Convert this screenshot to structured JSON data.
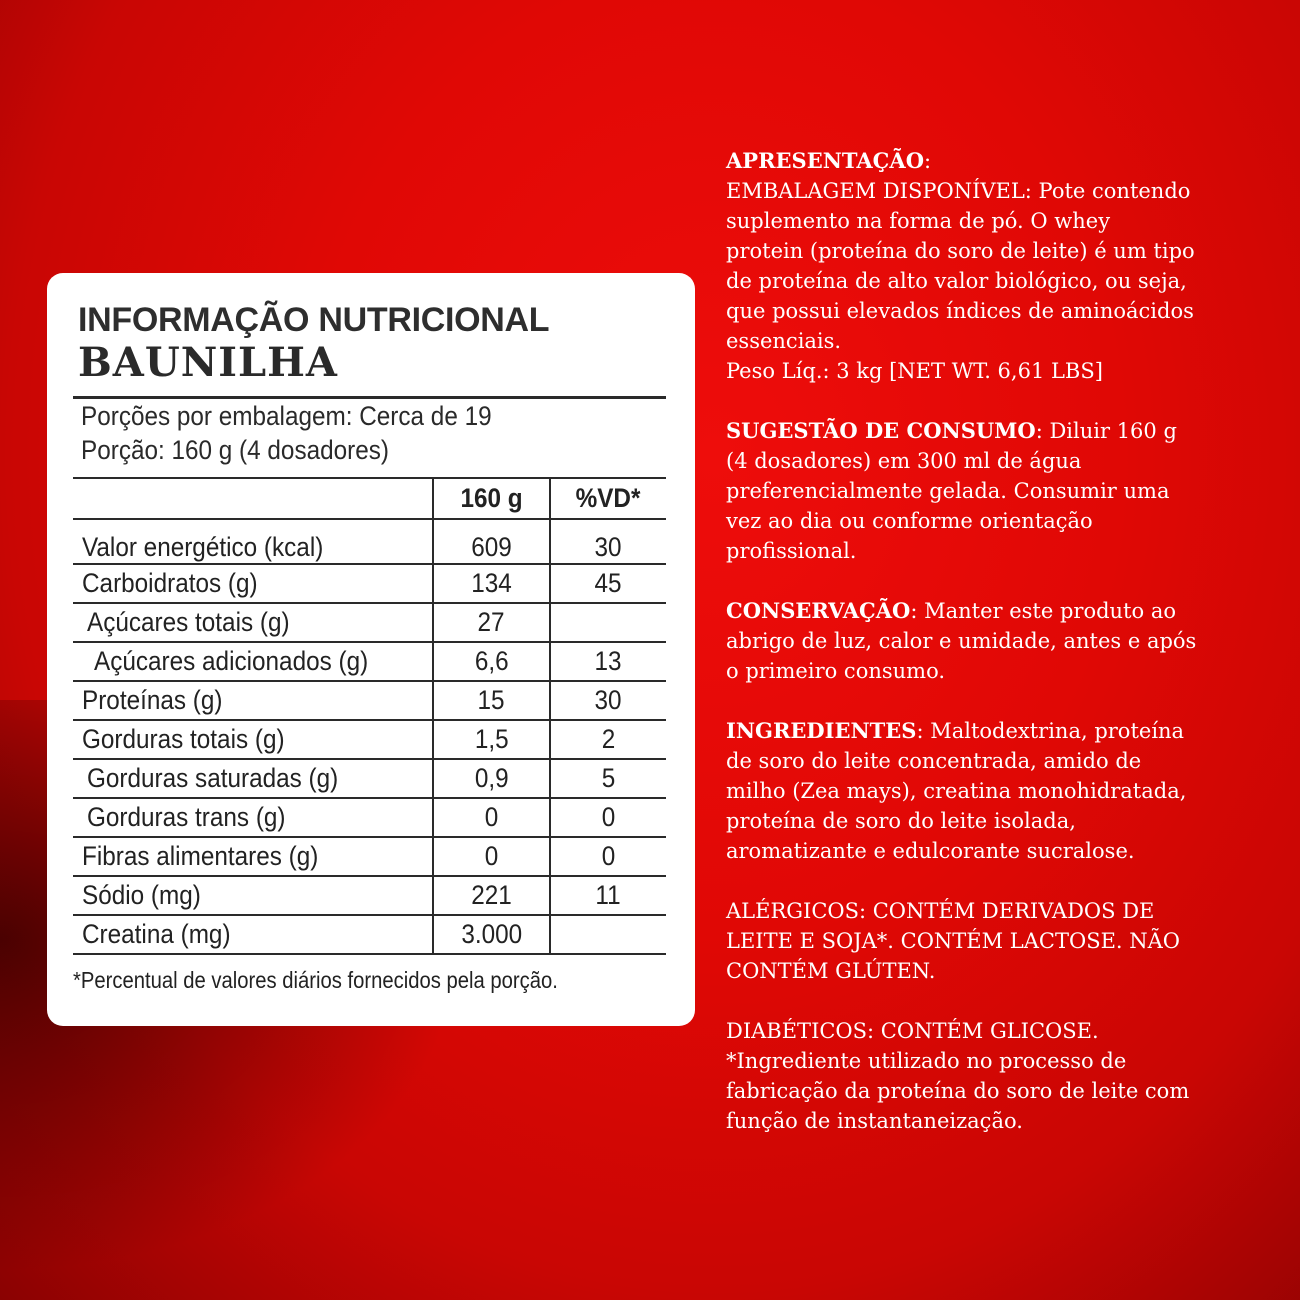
{
  "panel": {
    "title": "INFORMAÇÃO NUTRICIONAL",
    "flavor": "BAUNILHA",
    "servings_per_pack": "Porções por embalagem: Cerca de 19",
    "serving_size": "Porção: 160 g (4 dosadores)",
    "columns": [
      "",
      "160 g",
      "%VD*"
    ],
    "rows": [
      {
        "label": "Valor energético (kcal)",
        "amount": "609",
        "dv": "30",
        "indent": 0
      },
      {
        "label": "Carboidratos (g)",
        "amount": "134",
        "dv": "45",
        "indent": 0
      },
      {
        "label": "Açúcares totais (g)",
        "amount": "27",
        "dv": "",
        "indent": 1
      },
      {
        "label": "Açúcares adicionados (g)",
        "amount": "6,6",
        "dv": "13",
        "indent": 2
      },
      {
        "label": "Proteínas (g)",
        "amount": "15",
        "dv": "30",
        "indent": 0
      },
      {
        "label": "Gorduras totais (g)",
        "amount": "1,5",
        "dv": "2",
        "indent": 0
      },
      {
        "label": "Gorduras saturadas (g)",
        "amount": "0,9",
        "dv": "5",
        "indent": 1
      },
      {
        "label": "Gorduras trans (g)",
        "amount": "0",
        "dv": "0",
        "indent": 1
      },
      {
        "label": "Fibras alimentares (g)",
        "amount": "0",
        "dv": "0",
        "indent": 0
      },
      {
        "label": "Sódio (mg)",
        "amount": "221",
        "dv": "11",
        "indent": 0
      },
      {
        "label": "Creatina (mg)",
        "amount": "3.000",
        "dv": "",
        "indent": 0
      }
    ],
    "footnote": "*Percentual de valores diários fornecidos pela porção."
  },
  "info": [
    {
      "lines": [
        {
          "b": "APRESENTAÇÃO",
          "t": ":"
        },
        {
          "b": "",
          "t": "EMBALAGEM DISPONÍVEL: Pote contendo"
        },
        {
          "b": "",
          "t": "suplemento na forma de pó.  O whey"
        },
        {
          "b": "",
          "t": "protein (proteína do soro de leite) é um tipo"
        },
        {
          "b": "",
          "t": "de proteína de alto valor biológico, ou seja,"
        },
        {
          "b": "",
          "t": "que possui elevados índices de aminoácidos"
        },
        {
          "b": "",
          "t": "essenciais."
        },
        {
          "b": "",
          "t": "Peso Líq.: 3 kg [NET WT. 6,61 LBS]"
        }
      ]
    },
    {
      "lines": [
        {
          "b": "SUGESTÃO DE CONSUMO",
          "t": ":  Diluir 160 g"
        },
        {
          "b": "",
          "t": "(4 dosadores) em 300 ml de água"
        },
        {
          "b": "",
          "t": "preferencialmente gelada. Consumir uma"
        },
        {
          "b": "",
          "t": "vez ao dia ou conforme orientação"
        },
        {
          "b": "",
          "t": "profissional."
        }
      ]
    },
    {
      "lines": [
        {
          "b": "CONSERVAÇÃO",
          "t": ": Manter este produto ao"
        },
        {
          "b": "",
          "t": "abrigo de luz, calor e umidade, antes e após"
        },
        {
          "b": "",
          "t": "o primeiro consumo."
        }
      ]
    },
    {
      "lines": [
        {
          "b": "INGREDIENTES",
          "t": ": Maltodextrina, proteína"
        },
        {
          "b": "",
          "t": "de soro do leite concentrada, amido de"
        },
        {
          "b": "",
          "t": "milho (Zea mays), creatina monohidratada,"
        },
        {
          "b": "",
          "t": "proteína de soro do leite isolada,"
        },
        {
          "b": "",
          "t": "aromatizante e edulcorante sucralose."
        }
      ]
    },
    {
      "lines": [
        {
          "b": "",
          "t": "ALÉRGICOS: CONTÉM DERIVADOS DE"
        },
        {
          "b": "",
          "t": "LEITE E SOJA*. CONTÉM LACTOSE. NÃO"
        },
        {
          "b": "",
          "t": "CONTÉM GLÚTEN."
        }
      ]
    },
    {
      "lines": [
        {
          "b": "",
          "t": "DIABÉTICOS: CONTÉM GLICOSE."
        },
        {
          "b": "",
          "t": "*Ingrediente utilizado no processo de"
        },
        {
          "b": "",
          "t": "fabricação da proteína do soro de leite com"
        },
        {
          "b": "",
          "t": "função de instantaneização."
        }
      ]
    }
  ]
}
